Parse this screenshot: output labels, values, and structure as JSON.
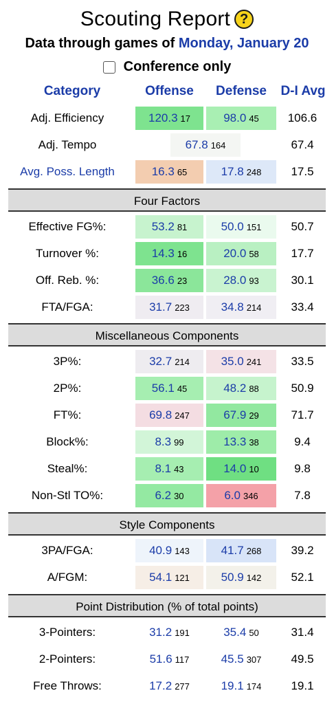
{
  "header": {
    "title": "Scouting Report",
    "subtitle_prefix": "Data through games of",
    "subtitle_date": "Monday, January 20",
    "conference_only_label": "Conference only"
  },
  "columns": {
    "category": "Category",
    "offense": "Offense",
    "defense": "Defense",
    "d1avg": "D-I Avg"
  },
  "top_rows": {
    "adj_eff": {
      "label": "Adj. Efficiency",
      "off": "120.3",
      "off_rank": "17",
      "def": "98.0",
      "def_rank": "45",
      "avg": "106.6",
      "off_color": "#7ee38f",
      "def_color": "#a9efb3"
    },
    "adj_tempo": {
      "label": "Adj. Tempo",
      "val": "67.8",
      "rank": "164",
      "avg": "67.4",
      "color": "#f4f6f3"
    },
    "poss_len": {
      "label": "Avg. Poss. Length",
      "off": "16.3",
      "off_rank": "65",
      "def": "17.8",
      "def_rank": "248",
      "avg": "17.5",
      "off_color": "#f3cdb0",
      "def_color": "#dde8f8"
    }
  },
  "sections": {
    "four_factors": "Four Factors",
    "misc": "Miscellaneous Components",
    "style": "Style Components",
    "points": "Point Distribution (% of total points)"
  },
  "four_factors": [
    {
      "label": "Effective FG%:",
      "off": "53.2",
      "off_rank": "81",
      "def": "50.0",
      "def_rank": "151",
      "avg": "50.7",
      "off_color": "#c7f3ce",
      "def_color": "#eafaee"
    },
    {
      "label": "Turnover %:",
      "off": "14.3",
      "off_rank": "16",
      "def": "20.0",
      "def_rank": "58",
      "avg": "17.7",
      "off_color": "#7ee38f",
      "def_color": "#b9f0c2"
    },
    {
      "label": "Off. Reb. %:",
      "off": "36.6",
      "off_rank": "23",
      "def": "28.0",
      "def_rank": "93",
      "avg": "30.1",
      "off_color": "#8be69a",
      "def_color": "#c9f3d0"
    },
    {
      "label": "FTA/FGA:",
      "off": "31.7",
      "off_rank": "223",
      "def": "34.8",
      "def_rank": "214",
      "avg": "33.4",
      "off_color": "#efecf1",
      "def_color": "#f0eef3"
    }
  ],
  "misc": [
    {
      "label": "3P%:",
      "off": "32.7",
      "off_rank": "214",
      "def": "35.0",
      "def_rank": "241",
      "avg": "33.5",
      "off_color": "#eeecf0",
      "def_color": "#f4e2e6"
    },
    {
      "label": "2P%:",
      "off": "56.1",
      "off_rank": "45",
      "def": "48.2",
      "def_rank": "88",
      "avg": "50.9",
      "off_color": "#a6eeb1",
      "def_color": "#c6f3cd"
    },
    {
      "label": "FT%:",
      "off": "69.8",
      "off_rank": "247",
      "def": "67.9",
      "def_rank": "29",
      "avg": "71.7",
      "off_color": "#f4dde2",
      "def_color": "#92e8a0"
    },
    {
      "label": "Block%:",
      "off": "8.3",
      "off_rank": "99",
      "def": "13.3",
      "def_rank": "38",
      "avg": "9.4",
      "off_color": "#d2f5d8",
      "def_color": "#9eeca9"
    },
    {
      "label": "Steal%:",
      "off": "8.1",
      "off_rank": "43",
      "def": "14.0",
      "def_rank": "10",
      "avg": "9.8",
      "off_color": "#a6eeb1",
      "def_color": "#6fdf82"
    },
    {
      "label": "Non-Stl TO%:",
      "off": "6.2",
      "off_rank": "30",
      "def": "6.0",
      "def_rank": "346",
      "avg": "7.8",
      "off_color": "#94e9a2",
      "def_color": "#f4a1a8"
    }
  ],
  "style": [
    {
      "label": "3PA/FGA:",
      "off": "40.9",
      "off_rank": "143",
      "def": "41.7",
      "def_rank": "268",
      "avg": "39.2",
      "off_color": "#eef4fb",
      "def_color": "#d8e4f8"
    },
    {
      "label": "A/FGM:",
      "off": "54.1",
      "off_rank": "121",
      "def": "50.9",
      "def_rank": "142",
      "avg": "52.1",
      "off_color": "#f6eee6",
      "def_color": "#f3f1ea"
    }
  ],
  "points": [
    {
      "label": "3-Pointers:",
      "off": "31.2",
      "off_rank": "191",
      "def": "35.4",
      "def_rank": "50",
      "avg": "31.4"
    },
    {
      "label": "2-Pointers:",
      "off": "51.6",
      "off_rank": "117",
      "def": "45.5",
      "def_rank": "307",
      "avg": "49.5"
    },
    {
      "label": "Free Throws:",
      "off": "17.2",
      "off_rank": "277",
      "def": "19.1",
      "def_rank": "174",
      "avg": "19.1"
    }
  ]
}
